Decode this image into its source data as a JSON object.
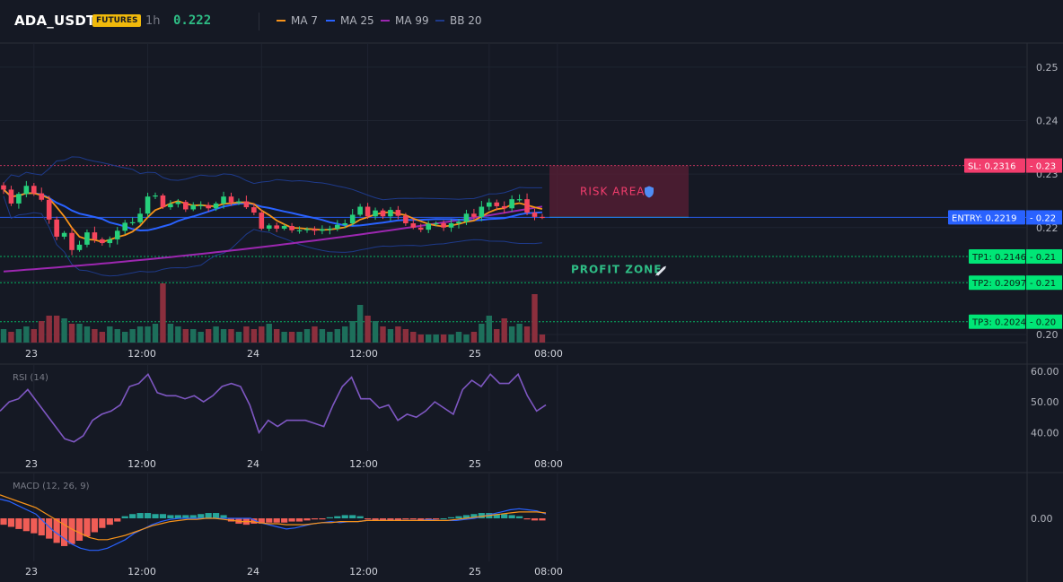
{
  "header": {
    "symbol": "ADA_USDT",
    "badge": "FUTURES",
    "timeframe": "1h",
    "price": "0.222",
    "indicators": [
      {
        "label": "MA 7",
        "color": "#f7931a"
      },
      {
        "label": "MA 25",
        "color": "#2962ff"
      },
      {
        "label": "MA 99",
        "color": "#9c27b0"
      },
      {
        "label": "BB 20",
        "color": "#1e3a8a"
      }
    ]
  },
  "chart_data": [
    {
      "type": "candlestick",
      "title": "ADA_USDT",
      "x_ticks": [
        "23",
        "12:00",
        "24",
        "12:00",
        "25",
        "08:00"
      ],
      "y_ticks": [
        "0.25",
        "0.24",
        "0.23",
        "0.22",
        "0.21",
        "0.20"
      ],
      "ylim": [
        0.1985,
        0.2545
      ],
      "n_bars": 72,
      "x_labels_by_index": {
        "4": "23",
        "19": "12:00",
        "34": "24",
        "48": "12:00",
        "64": "25",
        "73": "08:00"
      },
      "close": [
        0.2271,
        0.2245,
        0.2263,
        0.2278,
        0.2264,
        0.2252,
        0.2215,
        0.2183,
        0.219,
        0.2158,
        0.2168,
        0.2191,
        0.2178,
        0.2171,
        0.2178,
        0.2194,
        0.2209,
        0.221,
        0.2226,
        0.2258,
        0.226,
        0.2238,
        0.2244,
        0.2248,
        0.2234,
        0.2242,
        0.2242,
        0.2236,
        0.2245,
        0.2258,
        0.2247,
        0.2249,
        0.2238,
        0.2228,
        0.2198,
        0.2204,
        0.2198,
        0.2203,
        0.2195,
        0.2195,
        0.2197,
        0.2194,
        0.2197,
        0.2198,
        0.2205,
        0.2208,
        0.2224,
        0.2239,
        0.2221,
        0.2232,
        0.2221,
        0.2233,
        0.2222,
        0.2208,
        0.22,
        0.2196,
        0.2207,
        0.2208,
        0.22,
        0.2208,
        0.2211,
        0.2226,
        0.222,
        0.2239,
        0.2247,
        0.224,
        0.2236,
        0.2253,
        0.2253,
        0.2228,
        0.222,
        0.2219
      ],
      "volume": [
        5,
        4,
        5,
        6,
        5,
        8,
        10,
        10,
        9,
        7,
        7,
        6,
        5,
        4,
        6,
        5,
        4,
        5,
        6,
        6,
        7,
        22,
        7,
        6,
        5,
        5,
        4,
        5,
        6,
        5,
        5,
        4,
        6,
        5,
        6,
        7,
        5,
        4,
        4,
        4,
        5,
        6,
        5,
        4,
        5,
        6,
        8,
        14,
        10,
        8,
        6,
        5,
        6,
        5,
        4,
        3,
        3,
        3,
        3,
        3,
        4,
        3,
        4,
        7,
        10,
        5,
        9,
        6,
        7,
        6,
        18,
        3
      ],
      "series": [
        {
          "name": "MA 7",
          "color": "#f7931a"
        },
        {
          "name": "MA 25",
          "color": "#2962ff"
        },
        {
          "name": "MA 99",
          "color": "#9c27b0"
        },
        {
          "name": "BB 20",
          "color": "#1e3a8a"
        }
      ],
      "levels": [
        {
          "label": "SL: 0.2316",
          "right_value": "0.23",
          "value": 0.2316,
          "color": "#f23d6d"
        },
        {
          "label": "ENTRY: 0.2219",
          "right_value": "0.22",
          "value": 0.2219,
          "color": "#2962ff"
        },
        {
          "label": "TP1: 0.2146",
          "right_value": "0.21",
          "value": 0.2146,
          "color": "#00e676"
        },
        {
          "label": "TP2: 0.2097",
          "right_value": "0.21",
          "value": 0.2097,
          "color": "#00e676"
        },
        {
          "label": "TP3: 0.2024",
          "right_value": "0.20",
          "value": 0.2024,
          "color": "#00e676"
        }
      ],
      "zones": [
        {
          "label": "RISK AREA",
          "icon": "shield-icon",
          "from": 0.2219,
          "to": 0.2316
        },
        {
          "label": "PROFIT ZONE",
          "icon": "rocket-icon",
          "from": 0.2024,
          "to": 0.2219
        }
      ]
    },
    {
      "type": "line",
      "title": "RSI (14)",
      "y_ticks": [
        "60.00",
        "50.00",
        "40.00"
      ],
      "ylim": [
        34,
        62
      ],
      "values": [
        47,
        50,
        51,
        54,
        50,
        46,
        42,
        38,
        37,
        39,
        44,
        46,
        47,
        49,
        55,
        56,
        59,
        53,
        52,
        52,
        51,
        52,
        50,
        52,
        55,
        56,
        55,
        49,
        40,
        44,
        42,
        44,
        44,
        44,
        43,
        42,
        49,
        55,
        58,
        51,
        51,
        48,
        49,
        44,
        46,
        45,
        47,
        50,
        48,
        46,
        54,
        57,
        55,
        59,
        56,
        56,
        59,
        52,
        47,
        49
      ],
      "x_ticks": [
        "23",
        "12:00",
        "24",
        "12:00",
        "25",
        "08:00"
      ]
    },
    {
      "type": "bar",
      "title": "MACD (12, 26, 9)",
      "y_ticks": [
        "0.00"
      ],
      "ylim": [
        -0.0042,
        0.0042
      ],
      "histogram": [
        -0.0006,
        -0.0008,
        -0.001,
        -0.0012,
        -0.0014,
        -0.0016,
        -0.0019,
        -0.0023,
        -0.0026,
        -0.0024,
        -0.0021,
        -0.0017,
        -0.0013,
        -0.0009,
        -0.0006,
        -0.0003,
        0.0002,
        0.0004,
        0.0005,
        0.0005,
        0.0004,
        0.0004,
        0.0003,
        0.0003,
        0.0003,
        0.0003,
        0.0004,
        0.0005,
        0.0005,
        0.0003,
        -0.0003,
        -0.0005,
        -0.0006,
        -0.0005,
        -0.0005,
        -0.0004,
        -0.0004,
        -0.0004,
        -0.0003,
        -0.0003,
        -0.0002,
        -0.0001,
        -0.0001,
        0.0001,
        0.0002,
        0.0003,
        0.0003,
        0.0002,
        -0.0001,
        -0.0002,
        -0.0002,
        -0.0002,
        -0.0002,
        -0.0001,
        -0.0001,
        -0.0002,
        -0.0002,
        -0.0001,
        0.0,
        0.0001,
        0.0002,
        0.0003,
        0.0004,
        0.0005,
        0.0005,
        0.0004,
        0.0004,
        0.0003,
        0.0002,
        -0.0001,
        -0.0002,
        -0.0002
      ],
      "macd": [
        0.0018,
        0.0016,
        0.0012,
        0.0008,
        0.0004,
        -0.0004,
        -0.0012,
        -0.0018,
        -0.0024,
        -0.0028,
        -0.003,
        -0.003,
        -0.0028,
        -0.0024,
        -0.002,
        -0.0014,
        -0.001,
        -0.0006,
        -0.0003,
        -0.0001,
        0.0,
        0.0,
        0.0,
        0.0,
        0.0,
        0.0,
        0.0,
        0.0,
        0.0,
        -0.0004,
        -0.0006,
        -0.0008,
        -0.001,
        -0.0009,
        -0.0007,
        -0.0005,
        -0.0004,
        -0.0003,
        -0.0004,
        -0.0003,
        -0.0003,
        -0.0002,
        -0.0002,
        -0.0002,
        -0.0002,
        -0.0002,
        -0.0002,
        -0.0002,
        -0.0001,
        -0.0002,
        -0.0002,
        -0.0002,
        -0.0001,
        0.0,
        0.0002,
        0.0004,
        0.0006,
        0.0008,
        0.0009,
        0.0008,
        0.0007,
        0.0004
      ],
      "signal": [
        0.0022,
        0.0019,
        0.0016,
        0.0013,
        0.001,
        0.0005,
        0.0,
        -0.0005,
        -0.001,
        -0.0014,
        -0.0018,
        -0.002,
        -0.002,
        -0.0018,
        -0.0016,
        -0.0013,
        -0.001,
        -0.0007,
        -0.0005,
        -0.0003,
        -0.0002,
        -0.0001,
        -0.0001,
        0.0,
        0.0,
        -0.0001,
        -0.0002,
        -0.0003,
        -0.0003,
        -0.0004,
        -0.0005,
        -0.0005,
        -0.0006,
        -0.0006,
        -0.0006,
        -0.0005,
        -0.0004,
        -0.0004,
        -0.0003,
        -0.0003,
        -0.0003,
        -0.0002,
        -0.0002,
        -0.0002,
        -0.0002,
        -0.0002,
        -0.0002,
        -0.0002,
        -0.0002,
        -0.0002,
        -0.0002,
        -0.0001,
        0.0,
        0.0001,
        0.0002,
        0.0003,
        0.0004,
        0.0005,
        0.0006,
        0.0006,
        0.0006,
        0.0005
      ],
      "x_ticks": [
        "23",
        "12:00",
        "24",
        "12:00",
        "25",
        "08:00"
      ]
    }
  ]
}
